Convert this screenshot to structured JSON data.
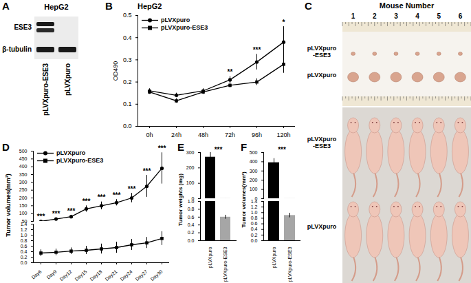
{
  "chart_data": [
    {
      "panel": "A",
      "type": "blot",
      "title": "HepG2",
      "lanes": [
        "pLVXpuro-ESE3",
        "pLVXpuro"
      ],
      "rows": [
        {
          "label": "ESE3",
          "present": [
            true,
            false
          ]
        },
        {
          "label": "β-tubulin",
          "present": [
            true,
            true
          ]
        }
      ]
    },
    {
      "panel": "B",
      "type": "line",
      "title": "HepG2",
      "y_label": "OD490",
      "categories": [
        "0h",
        "24h",
        "48h",
        "72h",
        "96h",
        "120h"
      ],
      "series": [
        {
          "name": "pLVXpuro",
          "color": "#000000",
          "marker": "circle",
          "values": [
            0.16,
            0.14,
            0.16,
            0.21,
            0.29,
            0.38
          ],
          "errors": [
            0.01,
            0.01,
            0.01,
            0.015,
            0.035,
            0.07
          ]
        },
        {
          "name": "pLVXpuro-ESE3",
          "color": "#000000",
          "marker": "square",
          "values": [
            0.155,
            0.115,
            0.155,
            0.185,
            0.2,
            0.28
          ],
          "errors": [
            0.01,
            0.01,
            0.01,
            0.01,
            0.015,
            0.04
          ]
        }
      ],
      "ylim": [
        0,
        0.5
      ],
      "yticks": [
        {
          "value": 0,
          "label": "0.0"
        },
        0.1,
        0.2,
        0.3,
        0.4,
        0.5
      ],
      "legend": "top-left",
      "annotations": [
        {
          "x": "72h",
          "text": "**"
        },
        {
          "x": "96h",
          "text": "***"
        },
        {
          "x": "120h",
          "text": "*"
        }
      ]
    },
    {
      "panel": "C",
      "type": "photo",
      "title": "Mouse Number",
      "columns": [
        "1",
        "2",
        "3",
        "4",
        "5",
        "6"
      ],
      "rows": [
        "pLVXpuro-ESE3",
        "pLVXpuro"
      ]
    },
    {
      "panel": "D",
      "type": "line",
      "y_label": "Tumor volumes(mm³)",
      "categories": [
        "Day6",
        "Day9",
        "Day12",
        "Day15",
        "Day18",
        "Day21",
        "Day24",
        "Day27",
        "Day30"
      ],
      "series": [
        {
          "name": "pLVXpuro",
          "color": "#000000",
          "marker": "circle",
          "axis": "y",
          "values": [
            50,
            65,
            80,
            130,
            150,
            170,
            200,
            275,
            390
          ],
          "errors": [
            5,
            5,
            10,
            20,
            25,
            20,
            30,
            70,
            100
          ]
        },
        {
          "name": "pLVXpuro-ESE3",
          "color": "#000000",
          "marker": "square",
          "axis": "y2",
          "values": [
            0.35,
            0.38,
            0.42,
            0.45,
            0.5,
            0.55,
            0.65,
            0.72,
            0.88
          ],
          "errors": [
            0.12,
            0.12,
            0.12,
            0.15,
            0.18,
            0.2,
            0.2,
            0.2,
            0.25
          ]
        }
      ],
      "ylim": [
        50,
        500
      ],
      "yticks": [
        50,
        100,
        150,
        200,
        250,
        300,
        350,
        400,
        450,
        500
      ],
      "y2lim": [
        0,
        1.4
      ],
      "y2ticks": [
        {
          "value": 0,
          "label": "0.0"
        },
        0.2,
        0.4,
        0.6,
        0.8,
        {
          "value": 1,
          "label": "1.0"
        },
        1.2,
        1.4
      ],
      "legend": "top-left",
      "annotations": [
        {
          "x": "Day6",
          "text": "***"
        },
        {
          "x": "Day9",
          "text": "***"
        },
        {
          "x": "Day12",
          "text": "***"
        },
        {
          "x": "Day15",
          "text": "***"
        },
        {
          "x": "Day18",
          "text": "***"
        },
        {
          "x": "Day21",
          "text": "***"
        },
        {
          "x": "Day24",
          "text": "***"
        },
        {
          "x": "Day27",
          "text": "***"
        },
        {
          "x": "Day30",
          "text": "***"
        }
      ]
    },
    {
      "panel": "E",
      "type": "bar",
      "y_label": "Tumor weights (mg)",
      "categories": [
        "pLVXpuro",
        "pLVXpuro-ESE3"
      ],
      "values": [
        270,
        0.6
      ],
      "errors": [
        30,
        0.05
      ],
      "colors": [
        "#000000",
        "#a6a6a6"
      ],
      "ylim": [
        0,
        300
      ],
      "yticks": [
        0,
        100,
        200,
        300
      ],
      "y2lim": [
        0,
        1
      ],
      "y2ticks": [
        {
          "value": 0,
          "label": "0.0"
        },
        0.2,
        0.4,
        0.6,
        0.8,
        {
          "value": 1,
          "label": "1.0"
        }
      ],
      "annotations": [
        {
          "text": "***"
        }
      ]
    },
    {
      "panel": "F",
      "type": "bar",
      "y_label": "Tumor volumes(mm³)",
      "categories": [
        "pLVXpuro",
        "pLVXpuro-ESE3"
      ],
      "values": [
        390,
        0.9
      ],
      "errors": [
        45,
        0.08
      ],
      "colors": [
        "#000000",
        "#a6a6a6"
      ],
      "ylim": [
        0,
        500
      ],
      "yticks": [
        0,
        100,
        200,
        300,
        400,
        500
      ],
      "y2lim": [
        0,
        1.4
      ],
      "y2ticks": [
        {
          "value": 0,
          "label": "0.0"
        },
        0.2,
        0.4,
        0.6,
        0.8,
        {
          "value": 1,
          "label": "1.0"
        },
        1.2,
        1.4
      ],
      "annotations": [
        {
          "text": "***"
        }
      ]
    }
  ]
}
